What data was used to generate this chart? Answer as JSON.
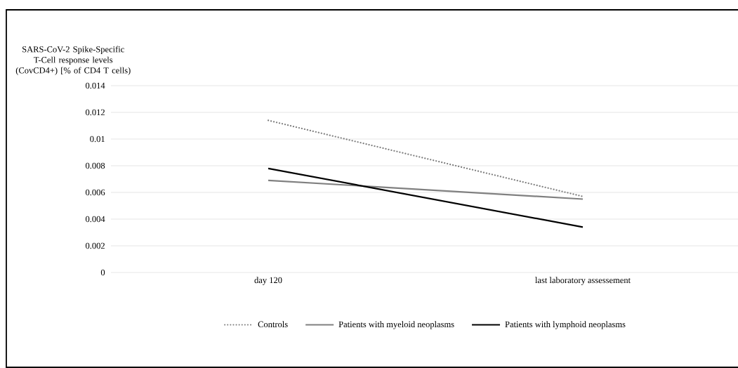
{
  "chart_data": {
    "type": "line",
    "ylabel": "SARS-CoV-2 Spike-Specific T-Cell response levels (CovCD4+) [% of CD4 T cells)",
    "categories": [
      "day 120",
      "last laboratory assessement"
    ],
    "series": [
      {
        "name": "Controls",
        "color": "#7f7f7f",
        "line_style": "dotted",
        "values": [
          0.0114,
          0.0057
        ]
      },
      {
        "name": "Patients with myeloid neoplasms",
        "color": "#808080",
        "line_style": "solid",
        "values": [
          0.0069,
          0.0055
        ]
      },
      {
        "name": "Patients with lymphoid neoplasms",
        "color": "#000000",
        "line_style": "solid",
        "values": [
          0.0078,
          0.0034
        ]
      }
    ],
    "ylim": [
      0,
      0.014
    ],
    "yticks": [
      0,
      0.002,
      0.004,
      0.006,
      0.008,
      0.01,
      0.012,
      0.014
    ],
    "grid": "y",
    "legend": "bottom"
  }
}
